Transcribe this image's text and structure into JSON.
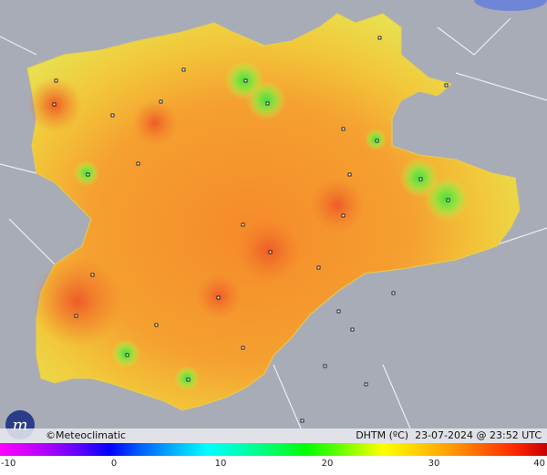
{
  "credit": "©Meteoclimatic",
  "caption": "DHTM (ºC)  23-07-2024 @ 23:52 UTC",
  "scale": {
    "ticks": [
      -10,
      0,
      10,
      20,
      30,
      40
    ]
  }
}
